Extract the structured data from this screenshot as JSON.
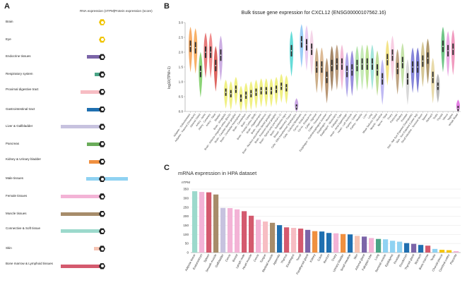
{
  "panels": {
    "a": "A",
    "b": "B",
    "c": "C"
  },
  "panel_a": {
    "header_rna": "RNA expression (nTPM)",
    "header_protein": "Protein expression (score)",
    "tissues": [
      {
        "name": "Brain",
        "color": "#f5c400",
        "rna": 2,
        "icon": "brain-icon",
        "protein_light": true
      },
      {
        "name": "Eye",
        "color": "#f5c400",
        "rna": 0,
        "icon": "eye-icon",
        "protein_light": true
      },
      {
        "name": "Endocrine tissues",
        "color": "#7b64a8",
        "rna": 40,
        "icon": "endocrine-icon"
      },
      {
        "name": "Respiratory system",
        "color": "#4aa486",
        "rna": 22,
        "icon": "lung-icon"
      },
      {
        "name": "Proximal digestive tract",
        "color": "#f7bdc3",
        "rna": 55,
        "icon": "stomach-icon"
      },
      {
        "name": "Gastrointestinal tract",
        "color": "#1f6fb0",
        "rna": 40,
        "icon": "intestine-icon"
      },
      {
        "name": "Liver & Gallbladder",
        "color": "#c7c2df",
        "rna": 100,
        "icon": "liver-icon"
      },
      {
        "name": "Pancreas",
        "color": "#6aac5a",
        "rna": 40,
        "icon": "pancreas-icon"
      },
      {
        "name": "Kidney & Urinary bladder",
        "color": "#f09040",
        "rna": 35,
        "icon": "kidney-icon"
      },
      {
        "name": "Male tissues",
        "color": "#8fd2f2",
        "rna": 95,
        "icon": "male-icon"
      },
      {
        "name": "Female tissues",
        "color": "#f3b3d6",
        "rna": 100,
        "icon": "female-icon"
      },
      {
        "name": "Muscle tissues",
        "color": "#a78c6a",
        "rna": 100,
        "icon": "muscle-icon"
      },
      {
        "name": "Connective & Soft tissue",
        "color": "#9cd9cc",
        "rna": 100,
        "icon": "connective-icon"
      },
      {
        "name": "Skin",
        "color": "#f6c3b2",
        "rna": 25,
        "icon": "skin-icon"
      },
      {
        "name": "Bone marrow & Lymphoid tissues",
        "color": "#d45a6e",
        "rna": 100,
        "icon": "lymph-icon"
      }
    ]
  },
  "chart_data": [
    {
      "type": "violin",
      "title": "Bulk tissue gene expression for CXCL12 (ENSG00000107562.16)",
      "ylabel": "log10(TPM+1)",
      "ylim": [
        0,
        3.0
      ],
      "yticks": [
        0.0,
        0.5,
        1.0,
        1.5,
        2.0,
        2.5,
        3.0
      ],
      "series": [
        {
          "name": "Adipose - Subcutaneous",
          "median": 2.2,
          "color": "#f5a45a"
        },
        {
          "name": "Adipose - Visceral (Omentum)",
          "median": 2.15,
          "color": "#f7a857"
        },
        {
          "name": "Adrenal Gland",
          "median": 1.35,
          "color": "#7fcf68"
        },
        {
          "name": "Artery - Aorta",
          "median": 2.0,
          "color": "#e36c6c"
        },
        {
          "name": "Artery - Coronary",
          "median": 2.0,
          "color": "#f08080"
        },
        {
          "name": "Artery - Tibial",
          "median": 1.55,
          "color": "#d9544f"
        },
        {
          "name": "Bladder",
          "median": 1.9,
          "color": "#c6a5e0"
        },
        {
          "name": "Brain - Amygdala",
          "median": 0.65,
          "color": "#eeee77"
        },
        {
          "name": "Brain - Anterior cingulate cortex (BA24)",
          "median": 0.6,
          "color": "#eeee77"
        },
        {
          "name": "Brain - Caudate (basal ganglia)",
          "median": 0.75,
          "color": "#eeee77"
        },
        {
          "name": "Brain - Cerebellar Hemisphere",
          "median": 0.45,
          "color": "#eeee77"
        },
        {
          "name": "Brain - Cerebellum",
          "median": 0.55,
          "color": "#eeee77"
        },
        {
          "name": "Brain - Cortex",
          "median": 0.6,
          "color": "#eeee77"
        },
        {
          "name": "Brain - Frontal Cortex (BA9)",
          "median": 0.65,
          "color": "#eeee77"
        },
        {
          "name": "Brain - Hippocampus",
          "median": 0.7,
          "color": "#eeee77"
        },
        {
          "name": "Brain - Hypothalamus",
          "median": 0.7,
          "color": "#eeee77"
        },
        {
          "name": "Brain - Nucleus accumbens (basal ganglia)",
          "median": 0.7,
          "color": "#eeee77"
        },
        {
          "name": "Brain - Putamen (basal ganglia)",
          "median": 0.75,
          "color": "#eeee77"
        },
        {
          "name": "Brain - Spinal cord (cervical c-1)",
          "median": 0.85,
          "color": "#eeee77"
        },
        {
          "name": "Brain - Substantia nigra",
          "median": 0.8,
          "color": "#eeee77"
        },
        {
          "name": "Breast - Mammary Tissue",
          "median": 2.05,
          "color": "#55d8d4"
        },
        {
          "name": "Cells - EBV-transformed lymphocytes",
          "median": 0.15,
          "color": "#c39be0"
        },
        {
          "name": "Cells - Cultured fibroblasts",
          "median": 2.35,
          "color": "#8fc8f5"
        },
        {
          "name": "Cervix - Ectocervix",
          "median": 2.25,
          "color": "#e6c5f0"
        },
        {
          "name": "Cervix - Endocervix",
          "median": 2.1,
          "color": "#f3d0e6"
        },
        {
          "name": "Colon - Sigmoid",
          "median": 1.5,
          "color": "#c7a57c"
        },
        {
          "name": "Colon - Transverse",
          "median": 1.5,
          "color": "#d9b28a"
        },
        {
          "name": "Esophagus - Gastroesophageal Junction",
          "median": 1.15,
          "color": "#b08a64"
        },
        {
          "name": "Esophagus - Mucosa",
          "median": 1.55,
          "color": "#9a7a58"
        },
        {
          "name": "Esophagus - Muscularis",
          "median": 1.6,
          "color": "#b59270"
        },
        {
          "name": "Fallopian Tube",
          "median": 1.6,
          "color": "#f2b4d2"
        },
        {
          "name": "Heart - Atrial Appendage",
          "median": 1.35,
          "color": "#a49ae6"
        },
        {
          "name": "Heart - Left Ventricle",
          "median": 1.4,
          "color": "#8d7fd9"
        },
        {
          "name": "Kidney - Cortex",
          "median": 1.55,
          "color": "#a8e0a0"
        },
        {
          "name": "Kidney - Medulla",
          "median": 1.6,
          "color": "#c0e8b0"
        },
        {
          "name": "Liver",
          "median": 1.6,
          "color": "#b5e08a"
        },
        {
          "name": "Lung",
          "median": 1.6,
          "color": "#9ae2d6"
        },
        {
          "name": "Minor Salivary Gland",
          "median": 1.4,
          "color": "#b8d88c"
        },
        {
          "name": "Muscle - Skeletal",
          "median": 1.1,
          "color": "#b8b1f2"
        },
        {
          "name": "Nerve - Tibial",
          "median": 1.75,
          "color": "#f2e07a"
        },
        {
          "name": "Ovary",
          "median": 1.9,
          "color": "#f7c9e0"
        },
        {
          "name": "Pancreas",
          "median": 1.45,
          "color": "#b89a76"
        },
        {
          "name": "Pituitary",
          "median": 1.65,
          "color": "#bfe0a0"
        },
        {
          "name": "Prostate",
          "median": 1.1,
          "color": "#d4d4d4"
        },
        {
          "name": "Skin - Not Sun Exposed (Suprapubic)",
          "median": 1.5,
          "color": "#7a7ad6"
        },
        {
          "name": "Skin - Sun Exposed (Lower leg)",
          "median": 1.5,
          "color": "#6a6acc"
        },
        {
          "name": "Small Intestine - Terminal Ileum",
          "median": 1.7,
          "color": "#cfc08a"
        },
        {
          "name": "Spleen",
          "median": 1.8,
          "color": "#a89060"
        },
        {
          "name": "Stomach",
          "median": 1.15,
          "color": "#e6d6a0"
        },
        {
          "name": "Testis",
          "median": 0.85,
          "color": "#b0b0b0"
        },
        {
          "name": "Thyroid",
          "median": 2.2,
          "color": "#5fbf7a"
        },
        {
          "name": "Uterus",
          "median": 2.05,
          "color": "#e8a0e0"
        },
        {
          "name": "Vagina",
          "median": 2.1,
          "color": "#f090b8"
        },
        {
          "name": "Whole Blood",
          "median": 0.1,
          "color": "#e070e0"
        }
      ]
    },
    {
      "type": "bar",
      "title": "mRNA expression in HPA dataset",
      "ylabel": "nTPM",
      "ylim": [
        0,
        350
      ],
      "yticks": [
        0,
        50,
        100,
        150,
        200,
        250,
        300,
        350
      ],
      "categories": [
        "Adipose tissue",
        "Endometrium",
        "Spleen",
        "Smooth muscle",
        "Gallbladder",
        "Cervix",
        "Breast",
        "Lymph node",
        "Heart muscle",
        "Cervix",
        "Tongue",
        "Skeletal muscle",
        "Appendix",
        "Thymus",
        "Esophagus",
        "Tonsil",
        "Parathyroid gland",
        "Kidney",
        "Colon",
        "Rectum",
        "Ovary",
        "Urinary bladder",
        "Small intestine",
        "Skin",
        "Adrenal gland",
        "Fallopian tube",
        "Lung",
        "Seminal vesicle",
        "Epididymis",
        "Prostate",
        "Duodenum",
        "Thyroid gland",
        "Stomach",
        "Bone marrow",
        "Testis",
        "Choroid plexus",
        "Cerebral cortex",
        "Placenta"
      ],
      "values": [
        338,
        334,
        332,
        320,
        246,
        245,
        238,
        228,
        203,
        181,
        171,
        164,
        151,
        139,
        136,
        132,
        125,
        118,
        116,
        108,
        106,
        102,
        100,
        92,
        88,
        80,
        75,
        73,
        65,
        60,
        52,
        48,
        42,
        38,
        20,
        15,
        13,
        8
      ],
      "colors": [
        "#9cd9cc",
        "#f3b3d6",
        "#d45a6e",
        "#a78c6a",
        "#c7c2df",
        "#f3b3d6",
        "#f3b3d6",
        "#d45a6e",
        "#d45a6e",
        "#f3b3d6",
        "#f7bdc3",
        "#a78c6a",
        "#1f6fb0",
        "#d45a6e",
        "#f7bdc3",
        "#d45a6e",
        "#7b64a8",
        "#f09040",
        "#1f6fb0",
        "#1f6fb0",
        "#f3b3d6",
        "#f09040",
        "#1f6fb0",
        "#f6c3b2",
        "#7b64a8",
        "#f3b3d6",
        "#4aa486",
        "#8fd2f2",
        "#8fd2f2",
        "#8fd2f2",
        "#1f6fb0",
        "#7b64a8",
        "#1f6fb0",
        "#d45a6e",
        "#8fd2f2",
        "#f5c400",
        "#f5c400",
        "#f3b3d6"
      ]
    }
  ]
}
